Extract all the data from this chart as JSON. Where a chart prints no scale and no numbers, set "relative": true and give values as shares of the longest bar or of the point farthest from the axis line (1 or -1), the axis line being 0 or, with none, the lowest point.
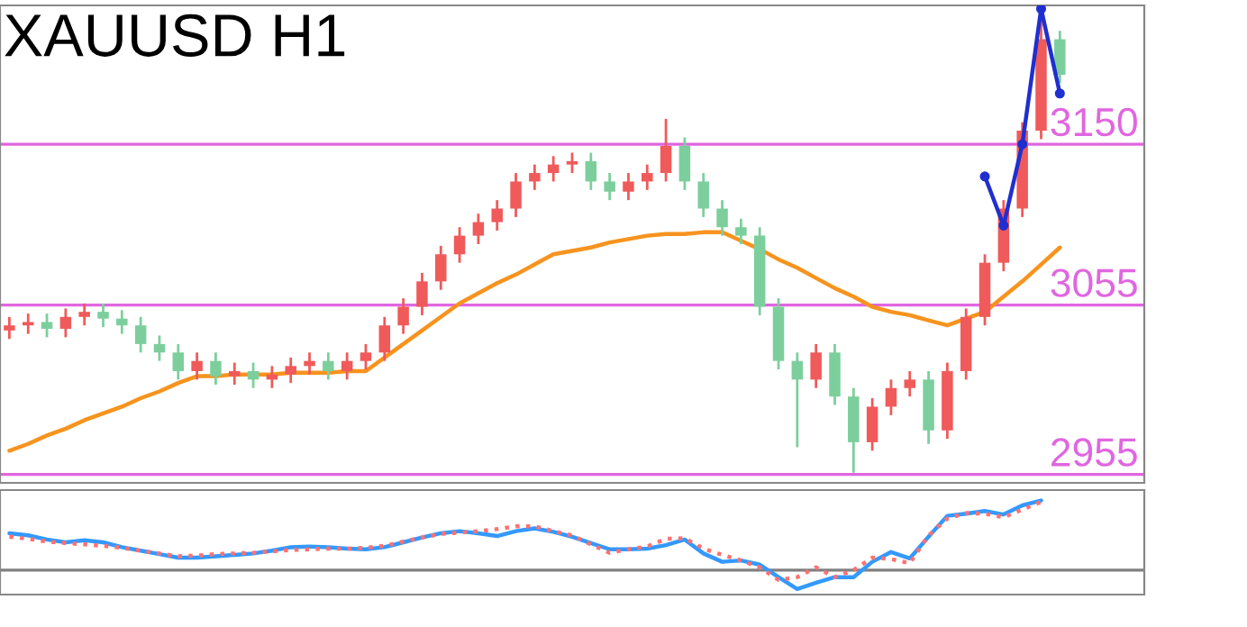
{
  "chart_data": [
    {
      "type": "candlestick",
      "title": "XAUUSD H1",
      "categories": [
        null,
        null,
        null,
        null,
        null,
        null,
        null,
        null,
        null,
        null,
        null,
        null,
        null,
        null,
        null,
        null,
        null,
        null,
        null,
        null,
        null,
        null,
        null,
        null,
        null,
        null,
        null,
        null,
        null,
        null,
        null,
        null,
        null,
        null,
        null,
        null,
        null,
        null,
        null,
        null,
        null,
        null,
        null,
        null,
        null,
        null,
        null,
        null,
        null,
        null,
        null,
        null,
        null,
        null,
        null,
        null,
        null
      ],
      "ohlc": [
        [
          3040,
          3048,
          3035,
          3043
        ],
        [
          3043,
          3050,
          3038,
          3045
        ],
        [
          3045,
          3050,
          3036,
          3041
        ],
        [
          3041,
          3053,
          3036,
          3048
        ],
        [
          3048,
          3056,
          3043,
          3051
        ],
        [
          3051,
          3056,
          3042,
          3047
        ],
        [
          3047,
          3052,
          3038,
          3043
        ],
        [
          3043,
          3048,
          3027,
          3032
        ],
        [
          3032,
          3037,
          3022,
          3027
        ],
        [
          3027,
          3032,
          3011,
          3016
        ],
        [
          3016,
          3027,
          3011,
          3022
        ],
        [
          3022,
          3027,
          3008,
          3013
        ],
        [
          3013,
          3021,
          3008,
          3016
        ],
        [
          3016,
          3021,
          3006,
          3011
        ],
        [
          3011,
          3019,
          3006,
          3014
        ],
        [
          3014,
          3024,
          3009,
          3019
        ],
        [
          3019,
          3027,
          3014,
          3022
        ],
        [
          3022,
          3027,
          3011,
          3016
        ],
        [
          3016,
          3027,
          3011,
          3022
        ],
        [
          3022,
          3032,
          3017,
          3027
        ],
        [
          3027,
          3048,
          3022,
          3043
        ],
        [
          3043,
          3059,
          3038,
          3054
        ],
        [
          3054,
          3074,
          3049,
          3069
        ],
        [
          3069,
          3090,
          3064,
          3085
        ],
        [
          3085,
          3101,
          3080,
          3096
        ],
        [
          3096,
          3109,
          3091,
          3104
        ],
        [
          3104,
          3117,
          3099,
          3112
        ],
        [
          3112,
          3133,
          3107,
          3128
        ],
        [
          3128,
          3138,
          3123,
          3133
        ],
        [
          3133,
          3143,
          3128,
          3138
        ],
        [
          3138,
          3145,
          3133,
          3140
        ],
        [
          3140,
          3145,
          3123,
          3128
        ],
        [
          3128,
          3133,
          3117,
          3122
        ],
        [
          3122,
          3133,
          3117,
          3128
        ],
        [
          3128,
          3138,
          3123,
          3133
        ],
        [
          3133,
          3165,
          3128,
          3149
        ],
        [
          3149,
          3154,
          3123,
          3128
        ],
        [
          3128,
          3133,
          3107,
          3112
        ],
        [
          3112,
          3117,
          3096,
          3101
        ],
        [
          3101,
          3106,
          3091,
          3096
        ],
        [
          3096,
          3101,
          3049,
          3054
        ],
        [
          3054,
          3059,
          3017,
          3022
        ],
        [
          3022,
          3027,
          2971,
          3011
        ],
        [
          3011,
          3032,
          3006,
          3027
        ],
        [
          3027,
          3032,
          2996,
          3001
        ],
        [
          3001,
          3006,
          2956,
          2974
        ],
        [
          2974,
          3000,
          2969,
          2995
        ],
        [
          2995,
          3011,
          2990,
          3006
        ],
        [
          3006,
          3016,
          3001,
          3011
        ],
        [
          3011,
          3016,
          2973,
          2981
        ],
        [
          2981,
          3021,
          2976,
          3016
        ],
        [
          3016,
          3053,
          3011,
          3048
        ],
        [
          3048,
          3085,
          3043,
          3080
        ],
        [
          3080,
          3117,
          3075,
          3112
        ],
        [
          3112,
          3163,
          3107,
          3158
        ],
        [
          3158,
          3225,
          3153,
          3212
        ],
        [
          3212,
          3217,
          3186,
          3191
        ]
      ],
      "colors": [
        "#f05a5a",
        "#f05a5a",
        "#7ccf9c",
        "#f05a5a",
        "#f05a5a",
        "#7ccf9c",
        "#7ccf9c",
        "#7ccf9c",
        "#7ccf9c",
        "#7ccf9c",
        "#f05a5a",
        "#7ccf9c",
        "#f05a5a",
        "#7ccf9c",
        "#f05a5a",
        "#f05a5a",
        "#f05a5a",
        "#7ccf9c",
        "#f05a5a",
        "#f05a5a",
        "#f05a5a",
        "#f05a5a",
        "#f05a5a",
        "#f05a5a",
        "#f05a5a",
        "#f05a5a",
        "#f05a5a",
        "#f05a5a",
        "#f05a5a",
        "#f05a5a",
        "#f05a5a",
        "#7ccf9c",
        "#7ccf9c",
        "#f05a5a",
        "#f05a5a",
        "#f05a5a",
        "#7ccf9c",
        "#7ccf9c",
        "#7ccf9c",
        "#7ccf9c",
        "#7ccf9c",
        "#7ccf9c",
        "#7ccf9c",
        "#f05a5a",
        "#7ccf9c",
        "#7ccf9c",
        "#f05a5a",
        "#f05a5a",
        "#f05a5a",
        "#7ccf9c",
        "#f05a5a",
        "#f05a5a",
        "#f05a5a",
        "#f05a5a",
        "#f05a5a",
        "#f05a5a",
        "#7ccf9c"
      ],
      "series": [
        {
          "type": "line",
          "color": "#f7931e",
          "values": [
            2969,
            2973,
            2978,
            2982,
            2987,
            2991,
            2995,
            3000,
            3004,
            3009,
            3013,
            3013,
            3014,
            3014,
            3014,
            3015,
            3015,
            3015,
            3016,
            3016,
            3024,
            3032,
            3040,
            3048,
            3056,
            3062,
            3068,
            3073,
            3079,
            3085,
            3087,
            3089,
            3092,
            3094,
            3096,
            3097,
            3097,
            3098,
            3098,
            3093,
            3088,
            3082,
            3077,
            3071,
            3065,
            3060,
            3054,
            3051,
            3049,
            3046,
            3043,
            3047,
            3051,
            3060,
            3069,
            3079,
            3089
          ]
        },
        {
          "type": "line",
          "color": "#1f2fd0",
          "marker": "circle",
          "values": [
            null,
            null,
            null,
            null,
            null,
            null,
            null,
            null,
            null,
            null,
            null,
            null,
            null,
            null,
            null,
            null,
            null,
            null,
            null,
            null,
            null,
            null,
            null,
            null,
            null,
            null,
            null,
            null,
            null,
            null,
            null,
            null,
            null,
            null,
            null,
            null,
            null,
            null,
            null,
            null,
            null,
            null,
            null,
            null,
            null,
            null,
            null,
            null,
            null,
            null,
            null,
            null,
            3131,
            3102,
            3150,
            3230,
            3180
          ]
        }
      ],
      "ylim": [
        2950,
        3232
      ],
      "ref_lines": [
        {
          "axis": "y",
          "value": 3150,
          "label": "3150",
          "color": "#e066e0"
        },
        {
          "axis": "y",
          "value": 3055,
          "label": "3055",
          "color": "#e066e0"
        },
        {
          "axis": "y",
          "value": 2955,
          "label": "2955",
          "color": "#e066e0"
        }
      ]
    },
    {
      "type": "line",
      "relative": true,
      "categories": [
        null,
        null,
        null,
        null,
        null,
        null,
        null,
        null,
        null,
        null,
        null,
        null,
        null,
        null,
        null,
        null,
        null,
        null,
        null,
        null,
        null,
        null,
        null,
        null,
        null,
        null,
        null,
        null,
        null,
        null,
        null,
        null,
        null,
        null,
        null,
        null,
        null,
        null,
        null,
        null,
        null,
        null,
        null,
        null,
        null,
        null,
        null,
        null,
        null,
        null,
        null,
        null,
        null,
        null,
        null,
        null,
        null
      ],
      "series": [
        {
          "color": "#3399ff",
          "values": [
            0.53,
            0.5,
            0.44,
            0.4,
            0.43,
            0.4,
            0.33,
            0.28,
            0.23,
            0.18,
            0.18,
            0.2,
            0.22,
            0.24,
            0.28,
            0.33,
            0.34,
            0.33,
            0.31,
            0.3,
            0.33,
            0.4,
            0.47,
            0.53,
            0.56,
            0.53,
            0.49,
            0.56,
            0.6,
            0.55,
            0.48,
            0.39,
            0.3,
            0.3,
            0.31,
            0.36,
            0.44,
            0.24,
            0.12,
            0.14,
            0.08,
            -0.1,
            -0.27,
            -0.18,
            -0.1,
            -0.1,
            0.12,
            0.26,
            0.17,
            0.48,
            0.78,
            0.81,
            0.85,
            0.8,
            0.93,
            1,
            null
          ]
        },
        {
          "color": "#ff7070",
          "line_style": "dotted",
          "values": [
            0.48,
            0.45,
            0.41,
            0.39,
            0.37,
            0.35,
            0.32,
            0.28,
            0.24,
            0.2,
            0.21,
            0.23,
            0.24,
            0.25,
            0.27,
            0.29,
            0.3,
            0.31,
            0.31,
            0.32,
            0.35,
            0.41,
            0.47,
            0.52,
            0.54,
            0.56,
            0.59,
            0.63,
            0.63,
            0.56,
            0.5,
            0.37,
            0.25,
            0.3,
            0.34,
            0.45,
            0.46,
            0.31,
            0.22,
            0.14,
            0.04,
            -0.14,
            -0.1,
            0.04,
            -0.1,
            0.0,
            0.18,
            0.16,
            0.1,
            0.5,
            0.74,
            0.82,
            0.81,
            0.76,
            0.87,
            0.98,
            null
          ]
        }
      ]
    }
  ]
}
